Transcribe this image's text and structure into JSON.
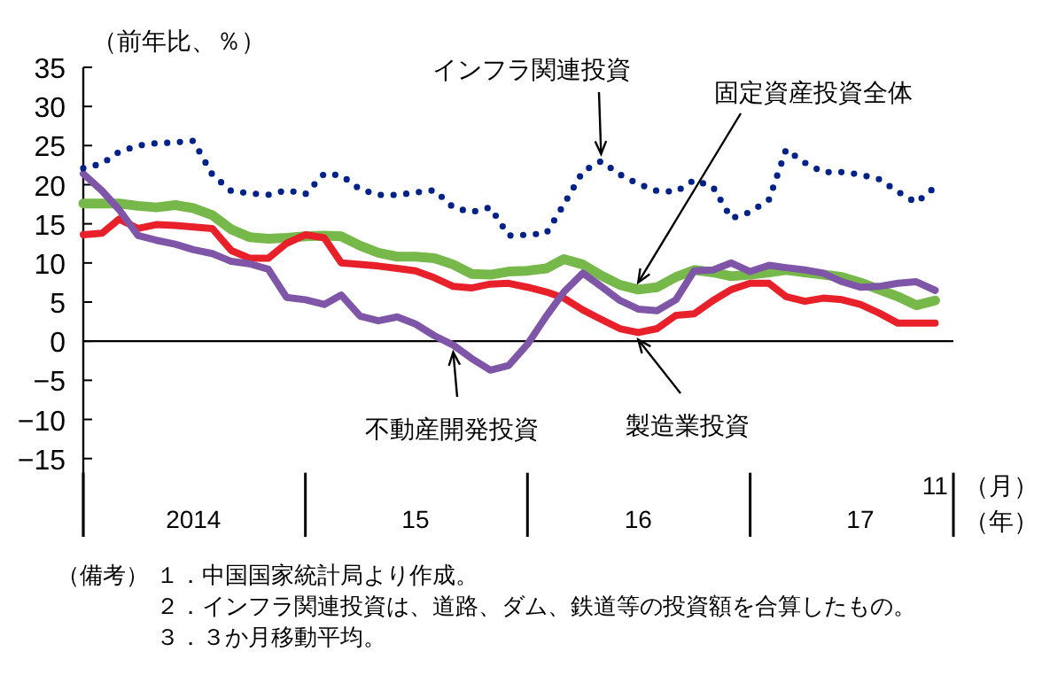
{
  "chart_data": {
    "type": "line",
    "ylabel": "（前年比、％）",
    "xlabel": "（年）",
    "x": [
      "2014-01",
      "2014-02",
      "2014-03",
      "2014-04",
      "2014-05",
      "2014-06",
      "2014-07",
      "2014-08",
      "2014-09",
      "2014-10",
      "2014-11",
      "2014-12",
      "2015-01",
      "2015-02",
      "2015-03",
      "2015-04",
      "2015-05",
      "2015-06",
      "2015-07",
      "2015-08",
      "2015-09",
      "2015-10",
      "2015-11",
      "2015-12",
      "2016-01",
      "2016-02",
      "2016-03",
      "2016-04",
      "2016-05",
      "2016-06",
      "2016-07",
      "2016-08",
      "2016-09",
      "2016-10",
      "2016-11",
      "2016-12",
      "2017-01",
      "2017-02",
      "2017-03",
      "2017-04",
      "2017-05",
      "2017-06",
      "2017-07",
      "2017-08",
      "2017-09",
      "2017-10",
      "2017-11"
    ],
    "xlim": [
      "2014-01",
      "2017-12"
    ],
    "xticks": [
      {
        "value": "2014-01",
        "label": null
      },
      {
        "value": "2014-07",
        "label": "2014"
      },
      {
        "value": "2015-01",
        "label": null
      },
      {
        "value": "2015-07",
        "label": "15"
      },
      {
        "value": "2016-01",
        "label": null
      },
      {
        "value": "2016-07",
        "label": "16"
      },
      {
        "value": "2017-01",
        "label": null
      },
      {
        "value": "2017-07",
        "label": "17"
      },
      {
        "value": "2017-12",
        "label": null
      }
    ],
    "ylim": [
      -25,
      35
    ],
    "yticks": [
      -15,
      -10,
      -5,
      0,
      5,
      10,
      15,
      20,
      25,
      30,
      35
    ],
    "legend": false,
    "marker": "none",
    "series": [
      {
        "name": "固定資産投資全体",
        "color": "#77b84a",
        "line_style": "solid",
        "values": [
          17.6,
          17.6,
          17.6,
          17.3,
          17.1,
          17.4,
          17.0,
          16.1,
          14.3,
          13.3,
          13.1,
          13.2,
          13.4,
          13.5,
          13.4,
          12.2,
          11.3,
          10.8,
          10.8,
          10.6,
          9.8,
          8.6,
          8.5,
          8.9,
          9.0,
          9.3,
          10.5,
          9.8,
          8.4,
          7.2,
          6.6,
          6.9,
          8.2,
          9.1,
          8.8,
          8.3,
          8.5,
          8.8,
          9.1,
          8.8,
          8.5,
          8.2,
          7.5,
          6.6,
          5.7,
          4.6,
          5.2
        ]
      },
      {
        "name": "製造業投資",
        "color": "#e8202a",
        "line_style": "solid",
        "values": [
          13.6,
          13.8,
          15.6,
          14.4,
          14.9,
          14.8,
          14.6,
          14.4,
          11.6,
          10.6,
          10.6,
          12.5,
          13.6,
          13.2,
          10.0,
          9.8,
          9.6,
          9.3,
          9.0,
          8.1,
          7.0,
          6.8,
          7.3,
          7.4,
          6.9,
          6.3,
          5.5,
          4.0,
          2.8,
          1.6,
          1.1,
          1.6,
          3.3,
          3.5,
          5.2,
          6.6,
          7.4,
          7.4,
          5.7,
          5.1,
          5.5,
          5.3,
          4.7,
          3.6,
          2.3,
          2.3,
          2.3
        ]
      },
      {
        "name": "不動産開発投資",
        "color": "#7f55a8",
        "line_style": "solid",
        "values": [
          21.4,
          19.2,
          16.8,
          13.5,
          12.9,
          12.4,
          11.7,
          11.2,
          10.2,
          9.9,
          9.2,
          5.6,
          5.3,
          4.7,
          5.9,
          3.2,
          2.6,
          3.1,
          2.2,
          0.7,
          -0.5,
          -2.2,
          -3.7,
          -3.1,
          -0.4,
          3.2,
          6.3,
          8.7,
          7.0,
          5.2,
          4.1,
          3.9,
          5.3,
          9.0,
          9.1,
          10.0,
          8.9,
          9.7,
          9.4,
          9.1,
          8.7,
          7.6,
          6.9,
          7.0,
          7.4,
          7.6,
          6.5
        ]
      },
      {
        "name": "インフラ関連投資",
        "color": "#002288",
        "line_style": "dotted",
        "values": [
          22.1,
          22.7,
          24.2,
          25.0,
          25.3,
          25.4,
          25.6,
          21.3,
          19.2,
          18.9,
          18.7,
          19.3,
          18.8,
          21.4,
          21.2,
          19.4,
          18.7,
          18.7,
          19.0,
          19.3,
          17.1,
          16.5,
          17.1,
          13.5,
          13.6,
          13.8,
          17.5,
          21.7,
          23.0,
          21.3,
          20.1,
          19.2,
          19.1,
          20.6,
          19.7,
          15.7,
          16.5,
          18.1,
          24.5,
          22.8,
          21.6,
          21.6,
          21.3,
          20.7,
          19.1,
          17.7,
          19.7
        ]
      }
    ],
    "annotations": [
      "11",
      "（月）",
      "（備考）",
      "１．中国国家統計局より作成。",
      "２．インフラ関連投資は、道路、ダム、鉄道等の投資額を合算したもの。",
      "３．３か月移動平均。"
    ]
  }
}
